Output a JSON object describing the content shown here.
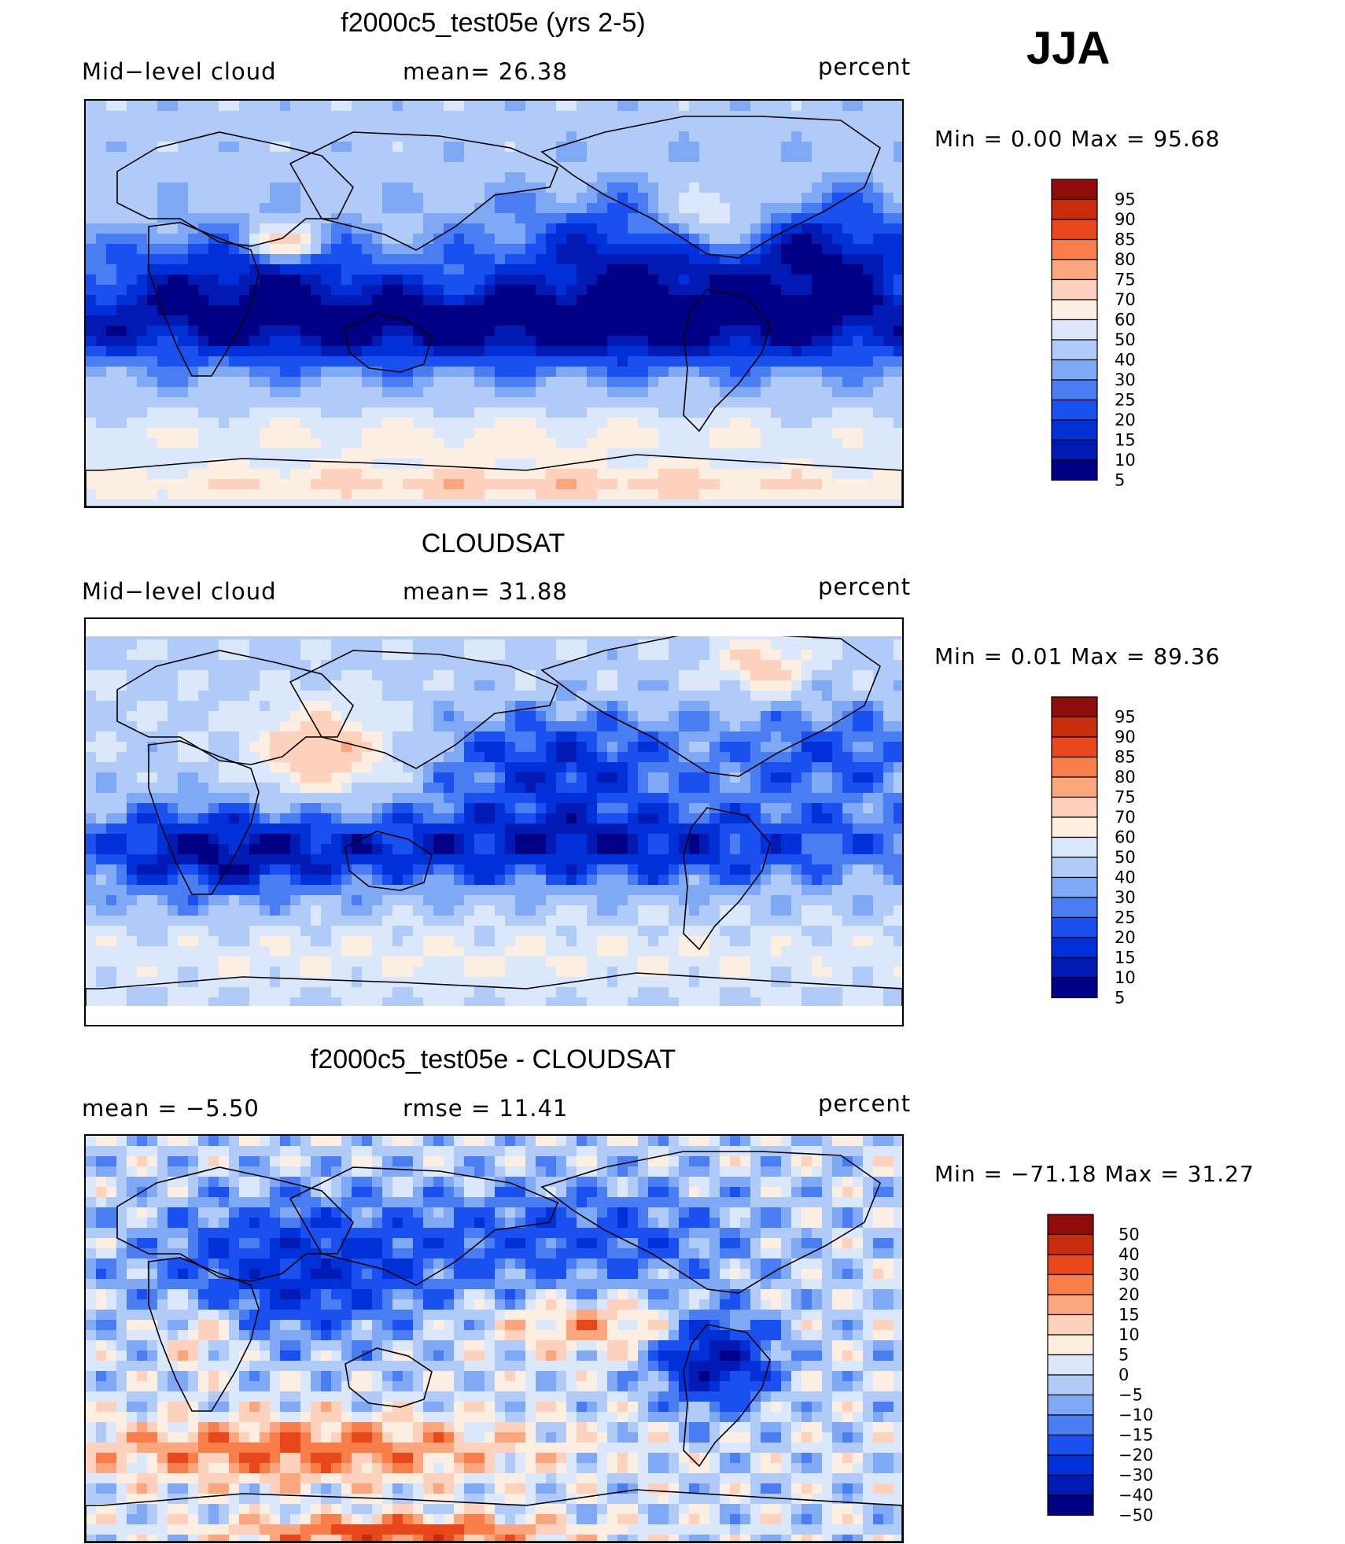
{
  "season": "JJA",
  "colors": {
    "seq": [
      "#000085",
      "#001ab3",
      "#0030d8",
      "#1a50f0",
      "#4a7df2",
      "#7fa8f5",
      "#b0cbf8",
      "#dbe8fb",
      "#fdeee2",
      "#fdd1bb",
      "#fca67e",
      "#f97d48",
      "#e8471b",
      "#c72c0c",
      "#8f0c0a"
    ],
    "div": [
      "#000085",
      "#001ab3",
      "#0030d8",
      "#1a50f0",
      "#4a7df2",
      "#7fa8f5",
      "#b0cbf8",
      "#dbe8fb",
      "#fdeee2",
      "#fdd1bb",
      "#fca67e",
      "#f97d48",
      "#e8471b",
      "#c72c0c",
      "#8f0c0a"
    ]
  },
  "chart_data": [
    {
      "type": "heatmap",
      "title": "f2000c5_test05e (yrs 2-5)",
      "left_label": "Mid−level  cloud",
      "center_label": "mean=   26.38",
      "units": "percent",
      "minmax": "Min  =      0.00  Max  =     95.68",
      "colorbar_levels": [
        "95",
        "90",
        "85",
        "80",
        "75",
        "70",
        "60",
        "50",
        "40",
        "30",
        "25",
        "20",
        "15",
        "10",
        "5"
      ],
      "field": "model"
    },
    {
      "type": "heatmap",
      "title": "CLOUDSAT",
      "left_label": "Mid−level  cloud",
      "center_label": "mean=   31.88",
      "units": "percent",
      "minmax": "Min  =      0.01  Max  =     89.36",
      "colorbar_levels": [
        "95",
        "90",
        "85",
        "80",
        "75",
        "70",
        "60",
        "50",
        "40",
        "30",
        "25",
        "20",
        "15",
        "10",
        "5"
      ],
      "field": "obs"
    },
    {
      "type": "heatmap",
      "title": "f2000c5_test05e - CLOUDSAT",
      "left_label": "mean  =    −5.50",
      "center_label": "rmse  =    11.41",
      "units": "percent",
      "minmax": "Min  =  −71.18  Max  =    31.27",
      "colorbar_levels": [
        "50",
        "40",
        "30",
        "20",
        "15",
        "10",
        "5",
        "0",
        "−5",
        "−10",
        "−15",
        "−20",
        "−30",
        "−40",
        "−50"
      ],
      "field": "diff"
    }
  ]
}
